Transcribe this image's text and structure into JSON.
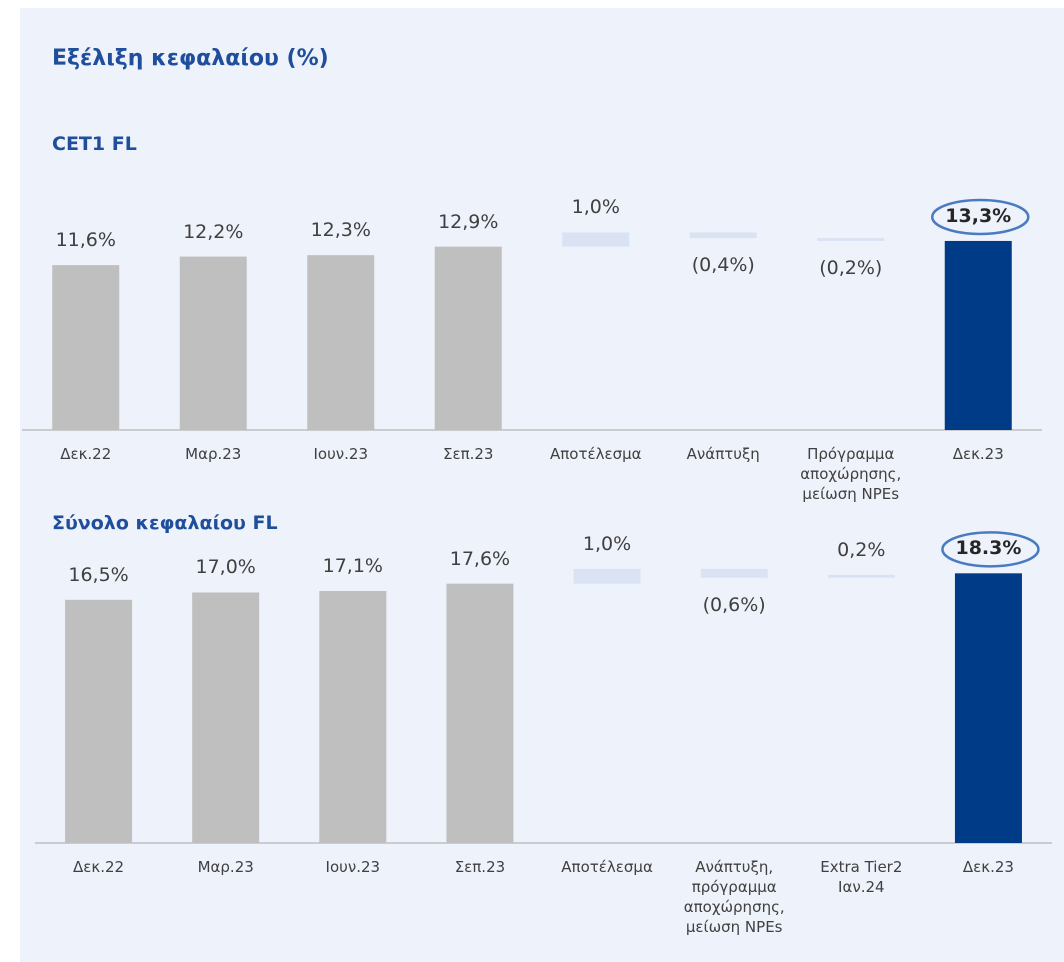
{
  "title": "Εξέλιξη κεφαλαίου (%)",
  "chart_data": [
    {
      "type": "waterfall",
      "title": "CET1 FL",
      "categories": [
        "Δεκ.22",
        "Μαρ.23",
        "Ιουν.23",
        "Σεπ.23",
        "Αποτέλεσμα",
        "Ανάπτυξη",
        "Πρόγραμμα αποχώρησης, μείωση NPEs",
        "Δεκ.23"
      ],
      "measures": [
        "total",
        "total",
        "total",
        "total",
        "relative",
        "relative",
        "relative",
        "total"
      ],
      "values": [
        11.6,
        12.2,
        12.3,
        12.9,
        1.0,
        -0.4,
        -0.2,
        13.3
      ],
      "value_labels": [
        "11,6%",
        "12,2%",
        "12,3%",
        "12,9%",
        "1,0%",
        "(0,4%)",
        "(0,2%)",
        "13,3%"
      ],
      "colors": [
        "#bfbfbf",
        "#bfbfbf",
        "#bfbfbf",
        "#bfbfbf",
        "#dae3f3",
        "#dae3f3",
        "#dae3f3",
        "#003b87"
      ],
      "ylim": [
        0,
        14
      ]
    },
    {
      "type": "waterfall",
      "title": "Σύνολο κεφαλαίου FL",
      "categories": [
        "Δεκ.22",
        "Μαρ.23",
        "Ιουν.23",
        "Σεπ.23",
        "Αποτέλεσμα",
        "Ανάπτυξη, πρόγραμμα αποχώρησης, μείωση NPEs",
        "Extra Tier2 Ιαν.24",
        "Δεκ.23"
      ],
      "measures": [
        "total",
        "total",
        "total",
        "total",
        "relative",
        "relative",
        "relative",
        "total"
      ],
      "values": [
        16.5,
        17.0,
        17.1,
        17.6,
        1.0,
        -0.6,
        0.2,
        18.3
      ],
      "value_labels": [
        "16,5%",
        "17,0%",
        "17,1%",
        "17,6%",
        "1,0%",
        "(0,6%)",
        "0,2%",
        "18.3%"
      ],
      "colors": [
        "#bfbfbf",
        "#bfbfbf",
        "#bfbfbf",
        "#bfbfbf",
        "#dae3f3",
        "#dae3f3",
        "#dae3f3",
        "#003b87"
      ],
      "ylim": [
        0,
        19
      ]
    }
  ]
}
